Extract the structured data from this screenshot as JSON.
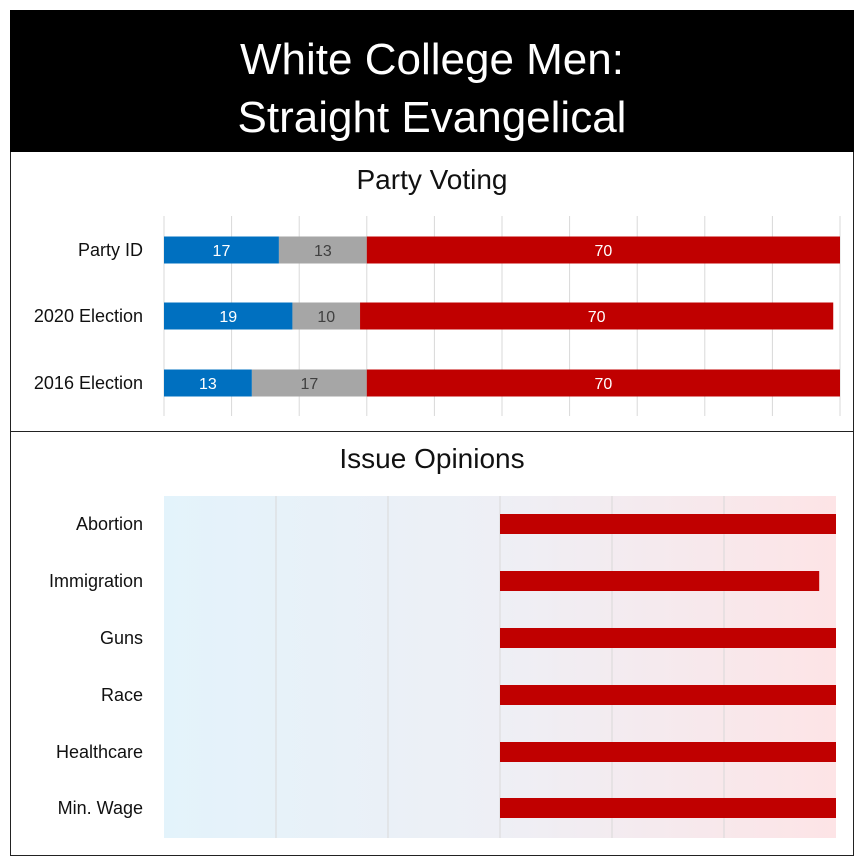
{
  "title": {
    "line1": "White College Men:",
    "line2": "Straight Evangelical"
  },
  "colors": {
    "democrat": "#0070c0",
    "neutral": "#a6a6a6",
    "republican": "#c00000",
    "gridline": "#d9d9d9",
    "blue_tint": "#e3f3fb",
    "red_tint": "#fde4e6"
  },
  "chart_data": [
    {
      "type": "bar",
      "orientation": "horizontal",
      "stacked": true,
      "title": "Party Voting",
      "categories": [
        "Party ID",
        "2020 Election",
        "2016 Election"
      ],
      "series": [
        {
          "values": [
            17,
            19,
            13
          ],
          "color": "#0070c0"
        },
        {
          "values": [
            13,
            10,
            17
          ],
          "color": "#a6a6a6"
        },
        {
          "values": [
            70,
            70,
            70
          ],
          "color": "#c00000"
        }
      ],
      "xlim": [
        0,
        100
      ],
      "grid": true,
      "legend": "none"
    },
    {
      "type": "bar",
      "orientation": "horizontal",
      "title": "Issue Opinions",
      "categories": [
        "Abortion",
        "Immigration",
        "Guns",
        "Race",
        "Healthcare",
        "Min. Wage"
      ],
      "values": [
        3,
        2.85,
        3,
        3,
        3,
        3
      ],
      "baseline": 0,
      "xlim": [
        -3,
        3
      ],
      "color": "#c00000",
      "grid": true,
      "legend": "none"
    }
  ]
}
